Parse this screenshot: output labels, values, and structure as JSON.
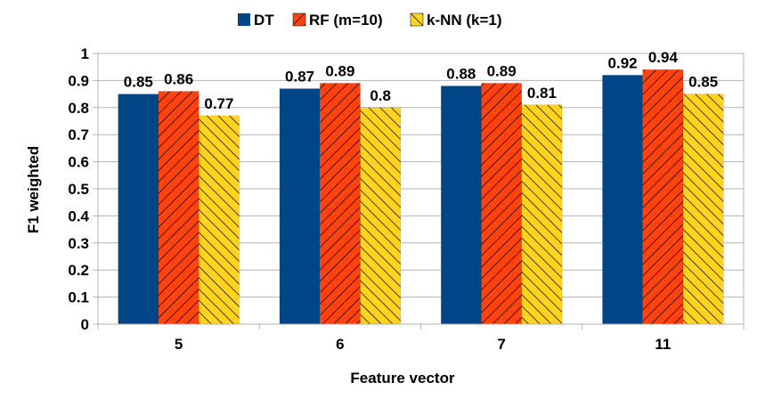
{
  "chart_data": {
    "type": "bar",
    "title": "",
    "xlabel": "Feature vector",
    "ylabel": "F1 weighted",
    "categories": [
      "5",
      "6",
      "7",
      "11"
    ],
    "ylim": [
      0,
      1
    ],
    "yticks": [
      "0",
      "0.1",
      "0.2",
      "0.3",
      "0.4",
      "0.5",
      "0.6",
      "0.7",
      "0.8",
      "0.9",
      "1"
    ],
    "grid": true,
    "legend_position": "top-center",
    "series": [
      {
        "name": "DT",
        "values": [
          0.85,
          0.87,
          0.88,
          0.92
        ],
        "labels": [
          "0.85",
          "0.87",
          "0.88",
          "0.92"
        ],
        "color": "#004586",
        "pattern": "solid"
      },
      {
        "name": "RF (m=10)",
        "values": [
          0.86,
          0.89,
          0.89,
          0.94
        ],
        "labels": [
          "0.86",
          "0.89",
          "0.89",
          "0.94"
        ],
        "color": "#ff420e",
        "pattern": "hatch"
      },
      {
        "name": "k-NN (k=1)",
        "values": [
          0.77,
          0.8,
          0.81,
          0.85
        ],
        "labels": [
          "0.77",
          "0.8",
          "0.81",
          "0.85"
        ],
        "color": "#ffd320",
        "pattern": "hatch"
      }
    ]
  }
}
